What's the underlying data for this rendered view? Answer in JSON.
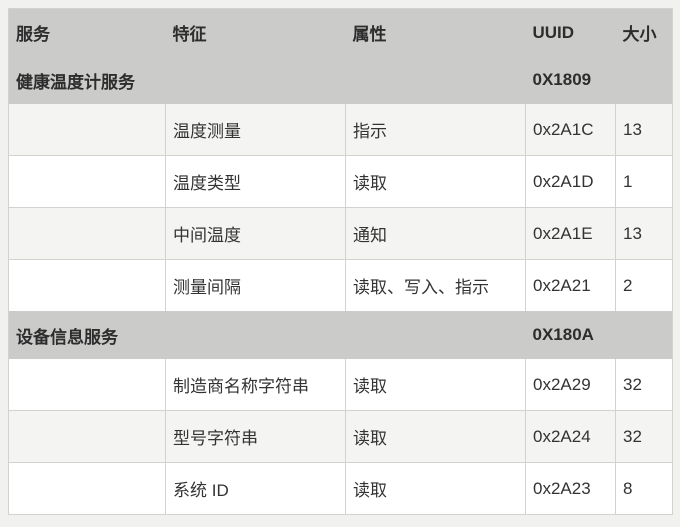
{
  "table": {
    "columns": [
      {
        "label": "服务"
      },
      {
        "label": "特征"
      },
      {
        "label": "属性"
      },
      {
        "label": "UUID"
      },
      {
        "label": "大小"
      }
    ],
    "sections": [
      {
        "name": "健康温度计服务",
        "uuid": "0X1809",
        "rows": [
          {
            "characteristic": "温度测量",
            "property": "指示",
            "uuid": "0x2A1C",
            "size": "13"
          },
          {
            "characteristic": "温度类型",
            "property": "读取",
            "uuid": "0x2A1D",
            "size": "1"
          },
          {
            "characteristic": "中间温度",
            "property": "通知",
            "uuid": "0x2A1E",
            "size": "13"
          },
          {
            "characteristic": "测量间隔",
            "property": "读取、写入、指示",
            "uuid": "0x2A21",
            "size": "2"
          }
        ]
      },
      {
        "name": "设备信息服务",
        "uuid": "0X180A",
        "rows": [
          {
            "characteristic": "制造商名称字符串",
            "property": "读取",
            "uuid": "0x2A29",
            "size": "32"
          },
          {
            "characteristic": "型号字符串",
            "property": "读取",
            "uuid": "0x2A24",
            "size": "32"
          },
          {
            "characteristic": "系统 ID",
            "property": "读取",
            "uuid": "0x2A23",
            "size": "8"
          }
        ]
      }
    ],
    "colors": {
      "page_bg": "#f1f1ef",
      "header_bg": "#cbcbca",
      "section_bg": "#cbcbca",
      "row_bg": "#ffffff",
      "row_alt_bg": "#f4f4f3",
      "border": "#d2d2d0",
      "text": "#333333"
    }
  }
}
